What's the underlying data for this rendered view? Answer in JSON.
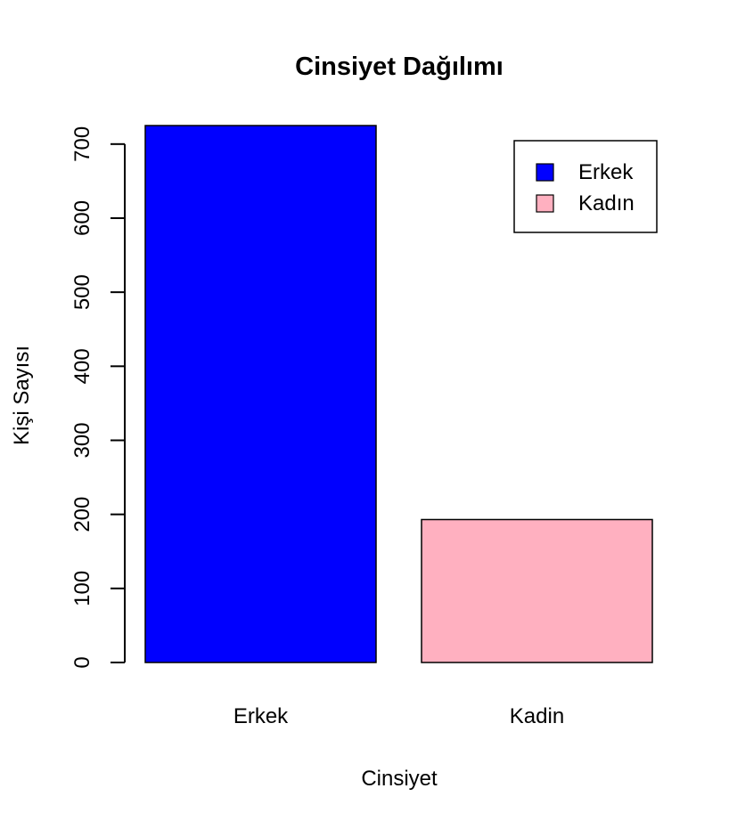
{
  "chart_data": {
    "type": "bar",
    "title": "Cinsiyet Dağılımı",
    "xlabel": "Cinsiyet",
    "ylabel": "Kişi Sayısı",
    "categories": [
      "Erkek",
      "Kadin"
    ],
    "values": [
      725,
      193
    ],
    "colors": [
      "#0000FF",
      "#FFB0C0"
    ],
    "ylim": [
      0,
      700
    ],
    "yticks": [
      0,
      100,
      200,
      300,
      400,
      500,
      600,
      700
    ],
    "legend": {
      "position": "top-right",
      "entries": [
        {
          "label": "Erkek",
          "color": "#0000FF"
        },
        {
          "label": "Kadın",
          "color": "#FFB0C0"
        }
      ]
    },
    "grid": false
  }
}
